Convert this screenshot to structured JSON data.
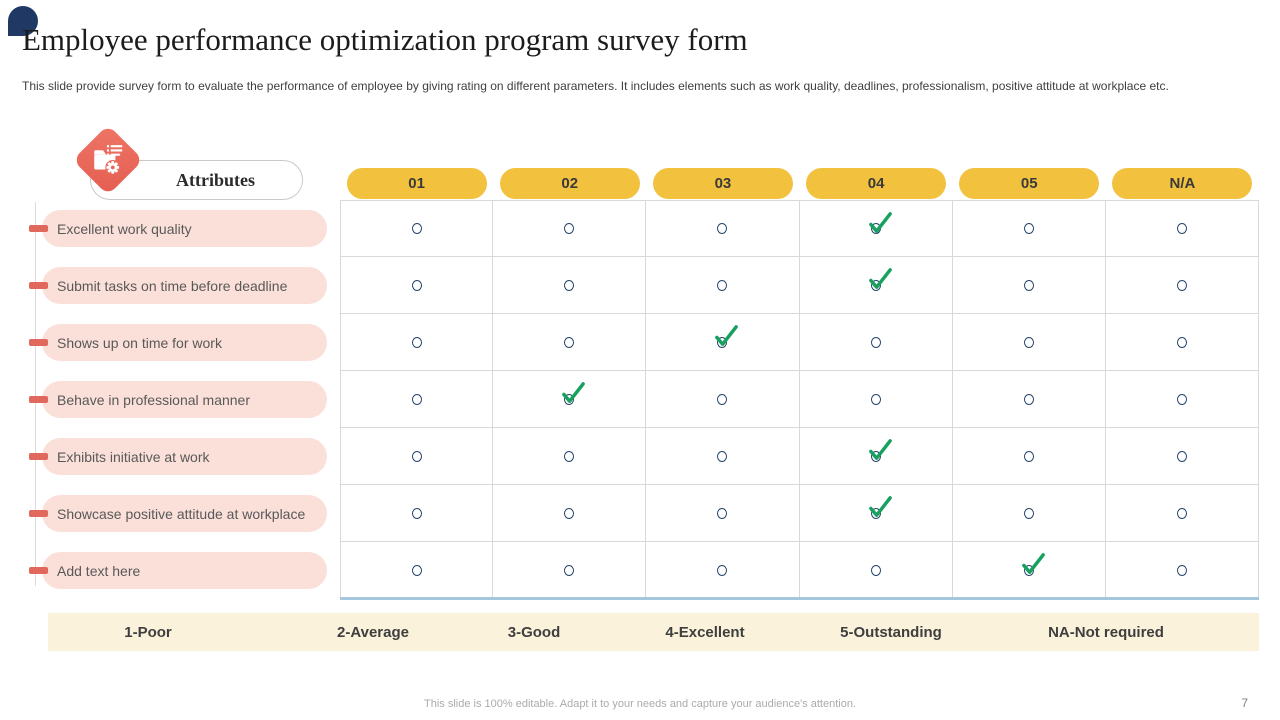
{
  "slide": {
    "title": "Employee performance optimization program survey form",
    "subtitle": "This slide provide survey form to evaluate the performance of employee by giving rating on different parameters. It includes elements such as work quality, deadlines, professionalism, positive attitude at workplace etc.",
    "footer_note": "This slide is 100% editable. Adapt it to your needs and capture your audience's attention.",
    "page_number": "7"
  },
  "survey": {
    "attributes_header": "Attributes",
    "columns": [
      "01",
      "02",
      "03",
      "04",
      "05",
      "N/A"
    ],
    "rows": [
      {
        "label": "Excellent work quality",
        "selected_column": "04"
      },
      {
        "label": "Submit tasks on time before deadline",
        "selected_column": "04"
      },
      {
        "label": "Shows up on time for work",
        "selected_column": "03"
      },
      {
        "label": "Behave in professional manner",
        "selected_column": "02"
      },
      {
        "label": "Exhibits initiative at work",
        "selected_column": "04"
      },
      {
        "label": "Showcase positive attitude at workplace",
        "selected_column": "04"
      },
      {
        "label": "Add text here",
        "selected_column": "05"
      }
    ],
    "legend": [
      "1-Poor",
      "2-Average",
      "3-Good",
      "4-Excellent",
      "5-Outstanding",
      "NA-Not required"
    ]
  },
  "icons": {
    "attributes_icon": "folder-gear-icon",
    "selected_icon": "green-check-icon",
    "unselected_icon": "radio-circle-icon"
  },
  "colors": {
    "navy": "#1F3864",
    "yellow": "#F2C13E",
    "coral": "#E8695B",
    "pink": "#FBDFD9",
    "green": "#17A05E",
    "cream": "#FBF2DB",
    "gridline": "#D9D9D9",
    "blueline": "#A5C8DE",
    "textgray": "#595959"
  }
}
